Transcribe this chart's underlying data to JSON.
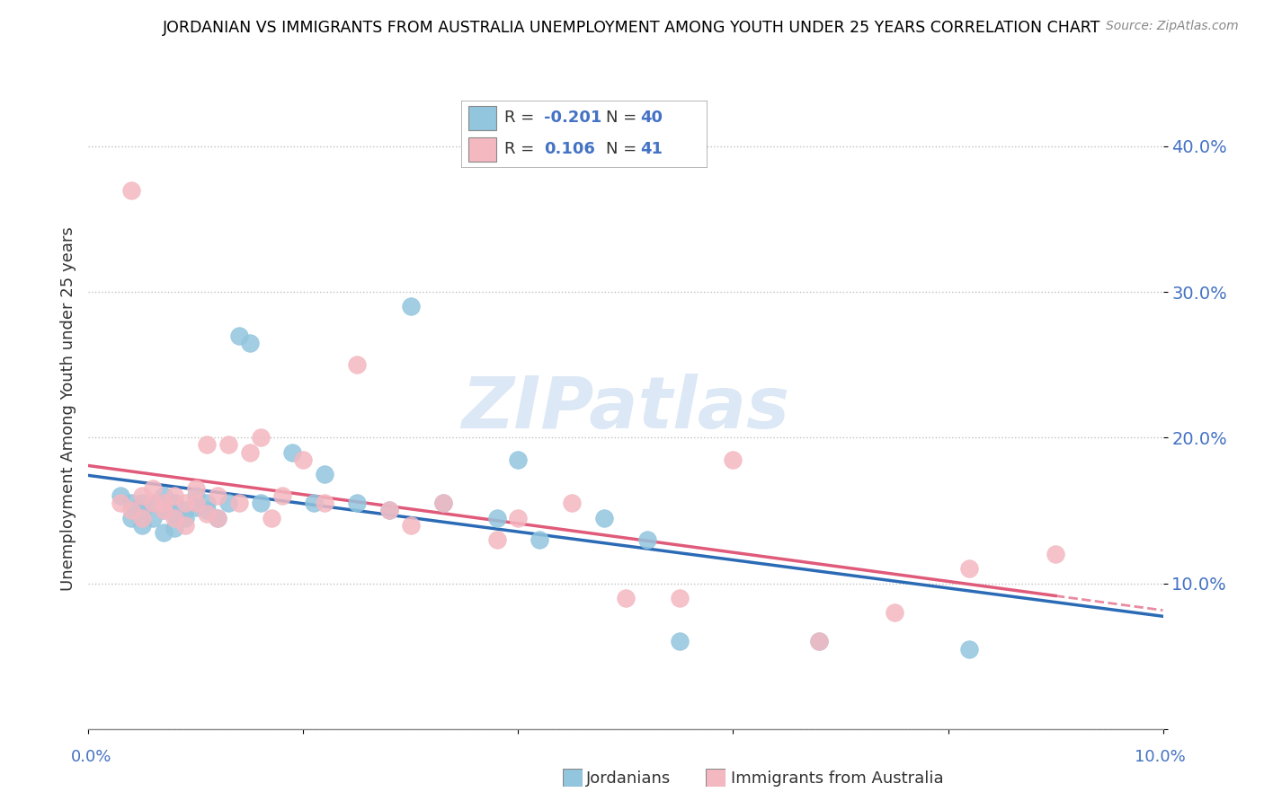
{
  "title": "JORDANIAN VS IMMIGRANTS FROM AUSTRALIA UNEMPLOYMENT AMONG YOUTH UNDER 25 YEARS CORRELATION CHART",
  "source": "Source: ZipAtlas.com",
  "ylabel": "Unemployment Among Youth under 25 years",
  "jordanians_R": "-0.201",
  "jordanians_N": "40",
  "immigrants_R": "0.106",
  "immigrants_N": "41",
  "blue_color": "#92c5de",
  "pink_color": "#f4b8c1",
  "blue_line_color": "#2b6bb5",
  "pink_line_color": "#e05a7a",
  "watermark_color": "#dce8f5",
  "x_lim": [
    0.0,
    0.1
  ],
  "y_lim": [
    0.0,
    0.44
  ],
  "y_ticks": [
    0.0,
    0.1,
    0.2,
    0.3,
    0.4
  ],
  "y_tick_labels": [
    "",
    "10.0%",
    "20.0%",
    "30.0%",
    "40.0%"
  ],
  "jordanians_x": [
    0.003,
    0.004,
    0.004,
    0.005,
    0.005,
    0.005,
    0.006,
    0.006,
    0.007,
    0.007,
    0.007,
    0.008,
    0.008,
    0.008,
    0.009,
    0.009,
    0.01,
    0.01,
    0.011,
    0.011,
    0.012,
    0.013,
    0.014,
    0.015,
    0.016,
    0.019,
    0.021,
    0.022,
    0.025,
    0.028,
    0.03,
    0.033,
    0.038,
    0.04,
    0.042,
    0.048,
    0.052,
    0.055,
    0.068,
    0.082
  ],
  "jordanians_y": [
    0.16,
    0.155,
    0.145,
    0.155,
    0.15,
    0.14,
    0.155,
    0.145,
    0.15,
    0.16,
    0.135,
    0.155,
    0.148,
    0.138,
    0.15,
    0.145,
    0.16,
    0.152,
    0.15,
    0.155,
    0.145,
    0.155,
    0.27,
    0.265,
    0.155,
    0.19,
    0.155,
    0.175,
    0.155,
    0.15,
    0.29,
    0.155,
    0.145,
    0.185,
    0.13,
    0.145,
    0.13,
    0.06,
    0.06,
    0.055
  ],
  "immigrants_x": [
    0.003,
    0.004,
    0.004,
    0.005,
    0.005,
    0.006,
    0.006,
    0.007,
    0.007,
    0.008,
    0.008,
    0.009,
    0.009,
    0.01,
    0.01,
    0.011,
    0.011,
    0.012,
    0.012,
    0.013,
    0.014,
    0.015,
    0.016,
    0.017,
    0.018,
    0.02,
    0.022,
    0.025,
    0.028,
    0.03,
    0.033,
    0.038,
    0.04,
    0.045,
    0.05,
    0.055,
    0.06,
    0.068,
    0.075,
    0.082,
    0.09
  ],
  "immigrants_y": [
    0.155,
    0.15,
    0.37,
    0.145,
    0.16,
    0.155,
    0.165,
    0.15,
    0.155,
    0.145,
    0.16,
    0.155,
    0.14,
    0.165,
    0.155,
    0.195,
    0.148,
    0.16,
    0.145,
    0.195,
    0.155,
    0.19,
    0.2,
    0.145,
    0.16,
    0.185,
    0.155,
    0.25,
    0.15,
    0.14,
    0.155,
    0.13,
    0.145,
    0.155,
    0.09,
    0.09,
    0.185,
    0.06,
    0.08,
    0.11,
    0.12
  ]
}
